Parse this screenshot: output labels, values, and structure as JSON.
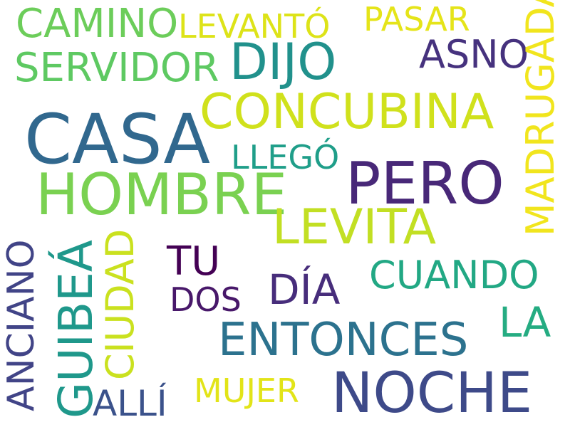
{
  "words": [
    {
      "id": "casa",
      "text": "CASA",
      "color": "#31688e"
    },
    {
      "id": "pero",
      "text": "PERO",
      "color": "#482878"
    },
    {
      "id": "hombre",
      "text": "HOMBRE",
      "color": "#7ad151"
    },
    {
      "id": "concubina",
      "text": "CONCUBINA",
      "color": "#d0e11c"
    },
    {
      "id": "noche",
      "text": "NOCHE",
      "color": "#3e4a89"
    },
    {
      "id": "dijo",
      "text": "DIJO",
      "color": "#21918c"
    },
    {
      "id": "levita",
      "text": "LEVITA",
      "color": "#c2df23"
    },
    {
      "id": "camino",
      "text": "CAMINO",
      "color": "#6ccd5a"
    },
    {
      "id": "servidor",
      "text": "SERVIDOR",
      "color": "#5ec962"
    },
    {
      "id": "levanto",
      "text": "LEVANTÓ",
      "color": "#dde318"
    },
    {
      "id": "pasar",
      "text": "PASAR",
      "color": "#e5e419"
    },
    {
      "id": "asno",
      "text": "ASNO",
      "color": "#46327e"
    },
    {
      "id": "madrugada",
      "text": "MADRUGADA",
      "color": "#f1e51d"
    },
    {
      "id": "llego",
      "text": "LLEGÓ",
      "color": "#1f9e89"
    },
    {
      "id": "guibea",
      "text": "GUIBEÁ",
      "color": "#1f988b"
    },
    {
      "id": "anciano",
      "text": "ANCIANO",
      "color": "#414487"
    },
    {
      "id": "ciudad",
      "text": "CIUDAD",
      "color": "#cae11f"
    },
    {
      "id": "tu",
      "text": "TU",
      "color": "#440154"
    },
    {
      "id": "dos",
      "text": "DOS",
      "color": "#48186a"
    },
    {
      "id": "dia",
      "text": "DÍA",
      "color": "#472d7b"
    },
    {
      "id": "cuando",
      "text": "CUANDO",
      "color": "#22a884"
    },
    {
      "id": "la",
      "text": "LA",
      "color": "#25ac82"
    },
    {
      "id": "entonces",
      "text": "ENTONCES",
      "color": "#2c728e"
    },
    {
      "id": "alli",
      "text": "ALLÍ",
      "color": "#3b528b"
    },
    {
      "id": "mujer",
      "text": "MUJER",
      "color": "#e2e418"
    }
  ]
}
